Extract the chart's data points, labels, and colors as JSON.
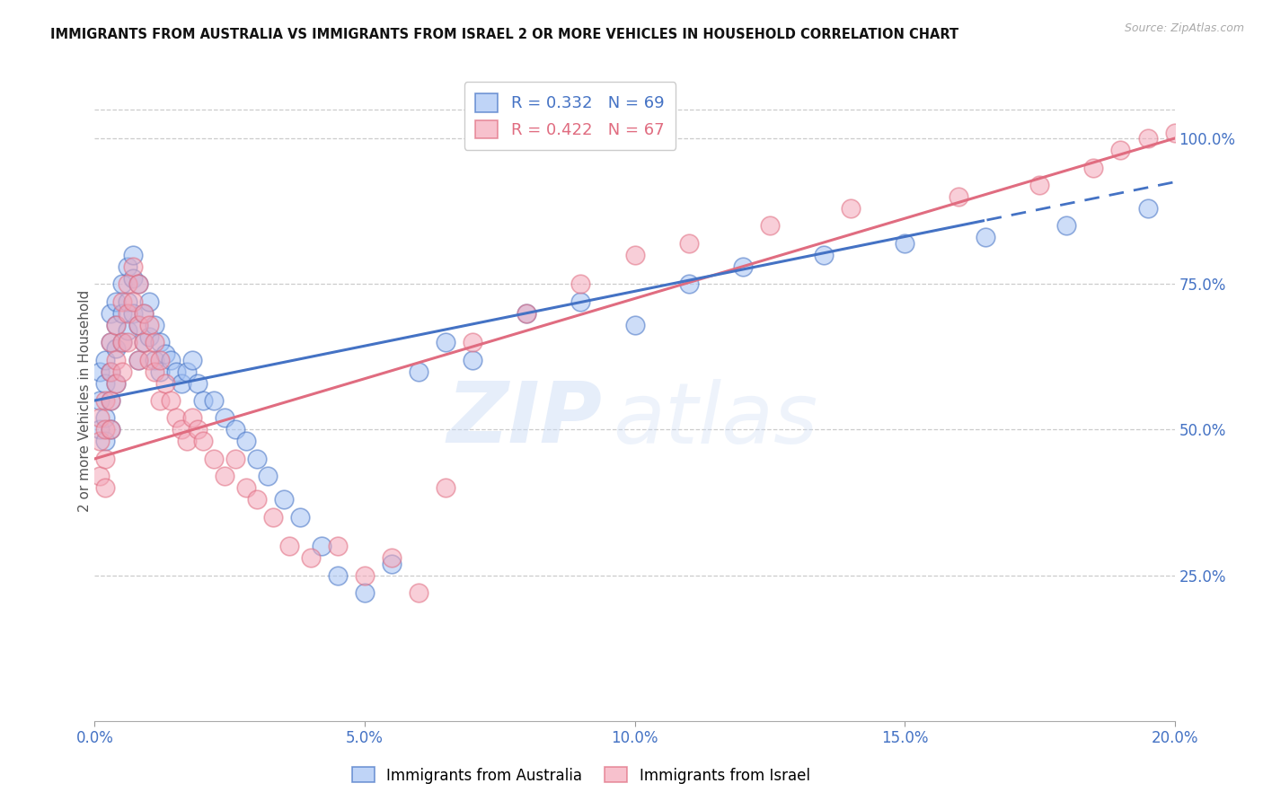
{
  "title": "IMMIGRANTS FROM AUSTRALIA VS IMMIGRANTS FROM ISRAEL 2 OR MORE VEHICLES IN HOUSEHOLD CORRELATION CHART",
  "source": "Source: ZipAtlas.com",
  "ylabel": "2 or more Vehicles in Household",
  "x_min": 0.0,
  "x_max": 0.2,
  "y_min": 0.0,
  "y_max": 1.1,
  "x_ticks": [
    0.0,
    0.05,
    0.1,
    0.15,
    0.2
  ],
  "x_tick_labels": [
    "0.0%",
    "5.0%",
    "10.0%",
    "15.0%",
    "20.0%"
  ],
  "y_ticks_right": [
    0.25,
    0.5,
    0.75,
    1.0
  ],
  "y_tick_labels_right": [
    "25.0%",
    "50.0%",
    "75.0%",
    "100.0%"
  ],
  "grid_color": "#cccccc",
  "blue_color": "#a4c2f4",
  "pink_color": "#f4a7b9",
  "trend_blue": "#4472c4",
  "trend_pink": "#e06c80",
  "R_australia": 0.332,
  "N_australia": 69,
  "R_israel": 0.422,
  "N_israel": 67,
  "watermark_zip": "ZIP",
  "watermark_atlas": "atlas",
  "legend_label_australia": "Immigrants from Australia",
  "legend_label_israel": "Immigrants from Israel",
  "aus_x": [
    0.001,
    0.001,
    0.001,
    0.002,
    0.002,
    0.002,
    0.002,
    0.003,
    0.003,
    0.003,
    0.003,
    0.003,
    0.004,
    0.004,
    0.004,
    0.004,
    0.005,
    0.005,
    0.005,
    0.006,
    0.006,
    0.006,
    0.007,
    0.007,
    0.007,
    0.008,
    0.008,
    0.008,
    0.009,
    0.009,
    0.01,
    0.01,
    0.011,
    0.011,
    0.012,
    0.012,
    0.013,
    0.014,
    0.015,
    0.016,
    0.017,
    0.018,
    0.019,
    0.02,
    0.022,
    0.024,
    0.026,
    0.028,
    0.03,
    0.032,
    0.035,
    0.038,
    0.042,
    0.045,
    0.05,
    0.055,
    0.06,
    0.065,
    0.07,
    0.08,
    0.09,
    0.1,
    0.11,
    0.12,
    0.135,
    0.15,
    0.165,
    0.18,
    0.195
  ],
  "aus_y": [
    0.55,
    0.6,
    0.5,
    0.62,
    0.58,
    0.52,
    0.48,
    0.65,
    0.7,
    0.6,
    0.55,
    0.5,
    0.72,
    0.68,
    0.64,
    0.58,
    0.75,
    0.7,
    0.65,
    0.78,
    0.72,
    0.67,
    0.8,
    0.76,
    0.7,
    0.75,
    0.68,
    0.62,
    0.7,
    0.65,
    0.72,
    0.66,
    0.68,
    0.62,
    0.65,
    0.6,
    0.63,
    0.62,
    0.6,
    0.58,
    0.6,
    0.62,
    0.58,
    0.55,
    0.55,
    0.52,
    0.5,
    0.48,
    0.45,
    0.42,
    0.38,
    0.35,
    0.3,
    0.25,
    0.22,
    0.27,
    0.6,
    0.65,
    0.62,
    0.7,
    0.72,
    0.68,
    0.75,
    0.78,
    0.8,
    0.82,
    0.83,
    0.85,
    0.88
  ],
  "isr_x": [
    0.001,
    0.001,
    0.001,
    0.002,
    0.002,
    0.002,
    0.002,
    0.003,
    0.003,
    0.003,
    0.003,
    0.004,
    0.004,
    0.004,
    0.005,
    0.005,
    0.005,
    0.006,
    0.006,
    0.006,
    0.007,
    0.007,
    0.008,
    0.008,
    0.008,
    0.009,
    0.009,
    0.01,
    0.01,
    0.011,
    0.011,
    0.012,
    0.012,
    0.013,
    0.014,
    0.015,
    0.016,
    0.017,
    0.018,
    0.019,
    0.02,
    0.022,
    0.024,
    0.026,
    0.028,
    0.03,
    0.033,
    0.036,
    0.04,
    0.045,
    0.05,
    0.055,
    0.06,
    0.065,
    0.07,
    0.08,
    0.09,
    0.1,
    0.11,
    0.125,
    0.14,
    0.16,
    0.175,
    0.185,
    0.19,
    0.195,
    0.2
  ],
  "isr_y": [
    0.48,
    0.52,
    0.42,
    0.55,
    0.5,
    0.45,
    0.4,
    0.6,
    0.65,
    0.55,
    0.5,
    0.68,
    0.62,
    0.58,
    0.72,
    0.65,
    0.6,
    0.75,
    0.7,
    0.65,
    0.78,
    0.72,
    0.75,
    0.68,
    0.62,
    0.7,
    0.65,
    0.68,
    0.62,
    0.65,
    0.6,
    0.62,
    0.55,
    0.58,
    0.55,
    0.52,
    0.5,
    0.48,
    0.52,
    0.5,
    0.48,
    0.45,
    0.42,
    0.45,
    0.4,
    0.38,
    0.35,
    0.3,
    0.28,
    0.3,
    0.25,
    0.28,
    0.22,
    0.4,
    0.65,
    0.7,
    0.75,
    0.8,
    0.82,
    0.85,
    0.88,
    0.9,
    0.92,
    0.95,
    0.98,
    1.0,
    1.01
  ]
}
